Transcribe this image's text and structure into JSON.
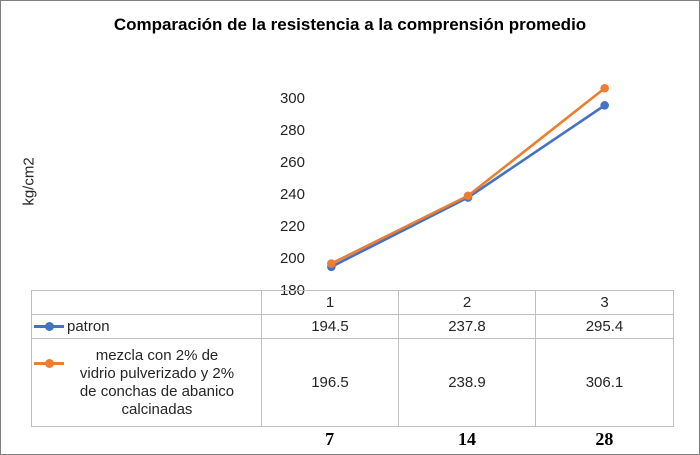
{
  "chart_data": {
    "type": "line",
    "title": "Comparación de la resistencia a la comprensión promedio",
    "ylabel": "kg/cm2",
    "xlabel": "",
    "categories": [
      "1",
      "2",
      "3"
    ],
    "series": [
      {
        "name": "patron",
        "color": "#4472C4",
        "marker": "circle",
        "values": [
          194.5,
          237.8,
          295.4
        ]
      },
      {
        "name": "mezcla con 2% de vidrio pulverizado y 2% de conchas de abanico calcinadas",
        "color": "#ED7D31",
        "marker": "circle",
        "values": [
          196.5,
          238.9,
          306.1
        ]
      }
    ],
    "ylim": [
      180,
      300
    ],
    "ytick_step": 20,
    "grid": false,
    "legend_position": "data-table-left",
    "data_table_shown": true,
    "bottom_axis_labels": [
      "7",
      "14",
      "28"
    ]
  }
}
